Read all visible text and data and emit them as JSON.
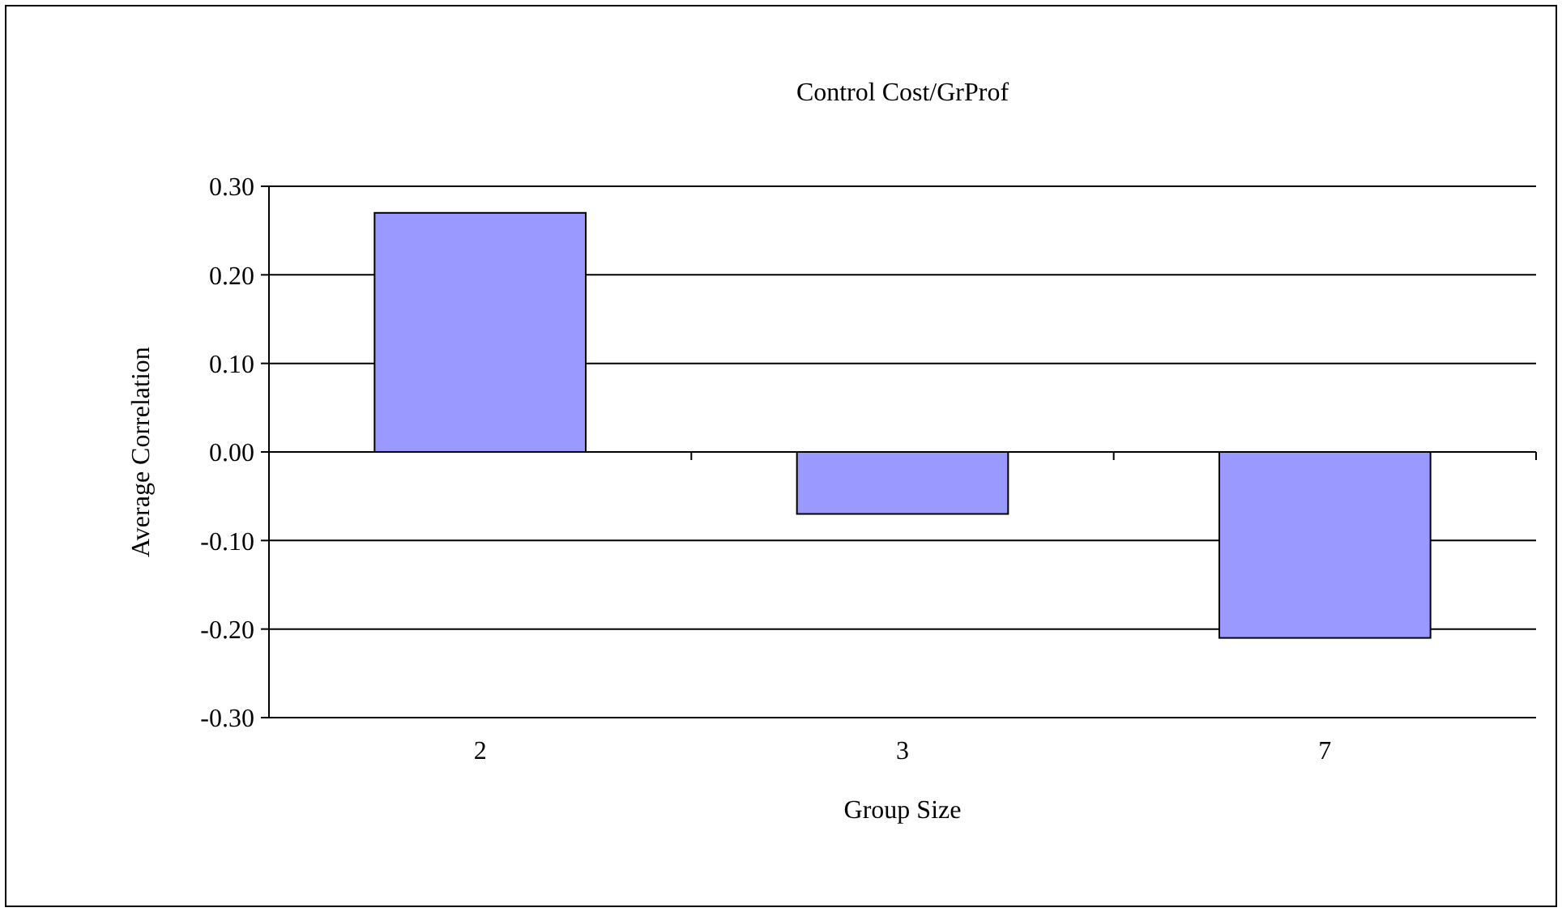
{
  "chart_data": {
    "type": "bar",
    "title": "Control Cost/GrProf",
    "xlabel": "Group Size",
    "ylabel": "Average Correlation",
    "categories": [
      "2",
      "3",
      "7"
    ],
    "values": [
      0.27,
      -0.07,
      -0.21
    ],
    "color": "#9999ff",
    "ylim": [
      -0.3,
      0.3
    ],
    "yticks": [
      {
        "value": -0.3,
        "label": "-0.30"
      },
      {
        "value": -0.2,
        "label": "-0.20"
      },
      {
        "value": -0.1,
        "label": "-0.10"
      },
      {
        "value": 0,
        "label": "0.00"
      },
      {
        "value": 0.1,
        "label": "0.10"
      },
      {
        "value": 0.2,
        "label": "0.20"
      },
      {
        "value": 0.3,
        "label": "0.30"
      }
    ],
    "grid": "y"
  }
}
